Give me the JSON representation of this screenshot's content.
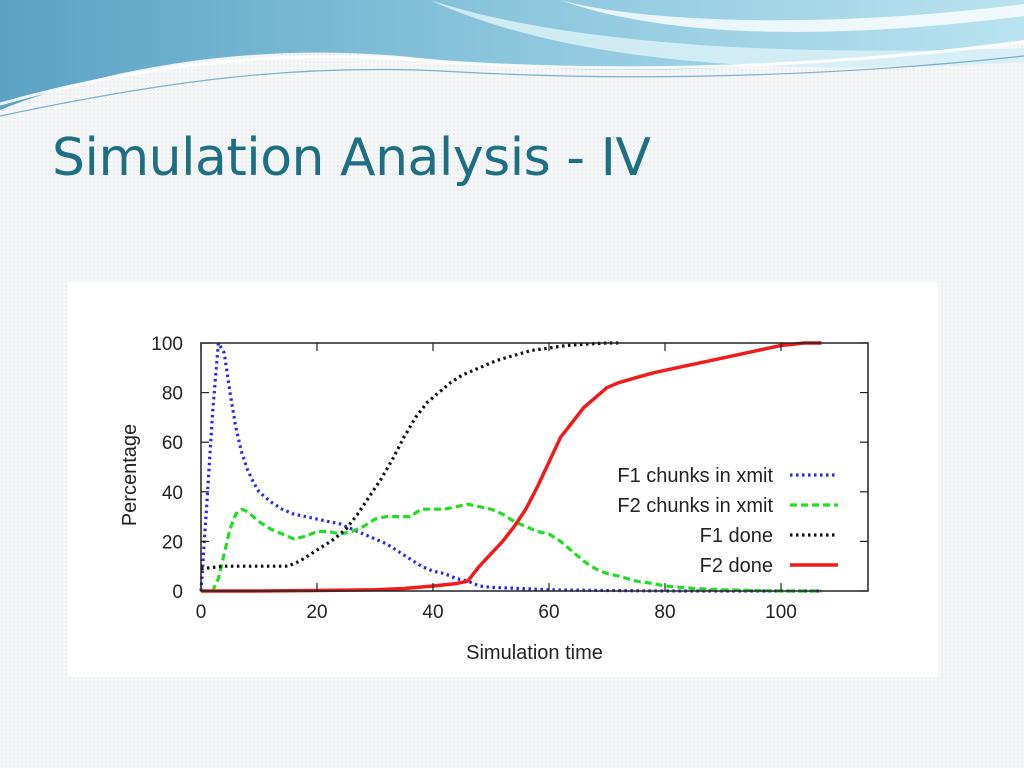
{
  "slide": {
    "title": "Simulation Analysis - IV"
  },
  "chart_data": {
    "type": "line",
    "title": "",
    "xlabel": "Simulation time",
    "ylabel": "Percentage",
    "xlim": [
      0,
      115
    ],
    "ylim": [
      0,
      100
    ],
    "xticks": [
      0,
      20,
      40,
      60,
      80,
      100
    ],
    "yticks": [
      0,
      20,
      40,
      60,
      80,
      100
    ],
    "grid": false,
    "legend_position": "right",
    "series": [
      {
        "name": "F1 chunks in xmit",
        "color": "#2a2ae0",
        "style": "dotted",
        "points": [
          [
            0,
            0
          ],
          [
            1,
            35
          ],
          [
            2,
            72
          ],
          [
            3,
            100
          ],
          [
            4,
            96
          ],
          [
            5,
            80
          ],
          [
            6,
            66
          ],
          [
            7,
            56
          ],
          [
            8,
            49
          ],
          [
            9,
            44
          ],
          [
            10,
            40
          ],
          [
            12,
            36
          ],
          [
            14,
            33
          ],
          [
            16,
            31
          ],
          [
            18,
            30
          ],
          [
            20,
            29
          ],
          [
            22,
            28
          ],
          [
            24,
            27
          ],
          [
            26,
            25
          ],
          [
            28,
            23
          ],
          [
            30,
            21
          ],
          [
            32,
            19
          ],
          [
            34,
            16
          ],
          [
            36,
            13
          ],
          [
            38,
            10
          ],
          [
            40,
            8
          ],
          [
            42,
            7
          ],
          [
            44,
            5
          ],
          [
            46,
            4
          ],
          [
            48,
            2
          ],
          [
            50,
            1.5
          ],
          [
            55,
            1
          ],
          [
            60,
            0.5
          ],
          [
            70,
            0.2
          ],
          [
            80,
            0
          ],
          [
            107,
            0
          ]
        ]
      },
      {
        "name": "F2 chunks in xmit",
        "color": "#22dd22",
        "style": "dashed",
        "points": [
          [
            0,
            0
          ],
          [
            2,
            0
          ],
          [
            3,
            5
          ],
          [
            4,
            15
          ],
          [
            5,
            25
          ],
          [
            6,
            31
          ],
          [
            7,
            33
          ],
          [
            8,
            32
          ],
          [
            10,
            28
          ],
          [
            12,
            25
          ],
          [
            14,
            23
          ],
          [
            16,
            21
          ],
          [
            18,
            22
          ],
          [
            20,
            24
          ],
          [
            22,
            24
          ],
          [
            24,
            23
          ],
          [
            26,
            24
          ],
          [
            28,
            26
          ],
          [
            30,
            29
          ],
          [
            32,
            30
          ],
          [
            34,
            30
          ],
          [
            36,
            30
          ],
          [
            38,
            33
          ],
          [
            40,
            33
          ],
          [
            42,
            33
          ],
          [
            44,
            34
          ],
          [
            46,
            35
          ],
          [
            48,
            34
          ],
          [
            50,
            33
          ],
          [
            52,
            31
          ],
          [
            54,
            28
          ],
          [
            56,
            26
          ],
          [
            58,
            24
          ],
          [
            60,
            23
          ],
          [
            62,
            20
          ],
          [
            64,
            16
          ],
          [
            66,
            12
          ],
          [
            68,
            9
          ],
          [
            70,
            7
          ],
          [
            72,
            6
          ],
          [
            75,
            4
          ],
          [
            78,
            3
          ],
          [
            80,
            2
          ],
          [
            85,
            1
          ],
          [
            90,
            0.5
          ],
          [
            100,
            0
          ],
          [
            107,
            0
          ]
        ]
      },
      {
        "name": "F1 done",
        "color": "#111111",
        "style": "dotted",
        "points": [
          [
            0,
            9
          ],
          [
            4,
            10
          ],
          [
            8,
            10
          ],
          [
            12,
            10
          ],
          [
            15,
            10
          ],
          [
            17,
            12
          ],
          [
            19,
            15
          ],
          [
            21,
            18
          ],
          [
            23,
            21
          ],
          [
            25,
            25
          ],
          [
            27,
            31
          ],
          [
            29,
            38
          ],
          [
            31,
            45
          ],
          [
            33,
            53
          ],
          [
            35,
            62
          ],
          [
            37,
            70
          ],
          [
            39,
            76
          ],
          [
            41,
            80
          ],
          [
            43,
            84
          ],
          [
            45,
            87
          ],
          [
            47,
            89
          ],
          [
            49,
            91
          ],
          [
            51,
            93
          ],
          [
            54,
            95
          ],
          [
            57,
            97
          ],
          [
            60,
            98
          ],
          [
            63,
            99
          ],
          [
            66,
            99.5
          ],
          [
            70,
            100
          ],
          [
            72,
            100
          ]
        ]
      },
      {
        "name": "F2 done",
        "color": "#ee1c1c",
        "style": "solid",
        "points": [
          [
            0,
            0
          ],
          [
            10,
            0
          ],
          [
            20,
            0.2
          ],
          [
            30,
            0.5
          ],
          [
            35,
            1
          ],
          [
            40,
            2
          ],
          [
            44,
            3
          ],
          [
            46,
            4
          ],
          [
            47,
            7
          ],
          [
            48,
            10
          ],
          [
            50,
            15
          ],
          [
            52,
            20
          ],
          [
            54,
            26
          ],
          [
            56,
            33
          ],
          [
            58,
            42
          ],
          [
            60,
            52
          ],
          [
            62,
            62
          ],
          [
            64,
            68
          ],
          [
            66,
            74
          ],
          [
            68,
            78
          ],
          [
            70,
            82
          ],
          [
            72,
            84
          ],
          [
            75,
            86
          ],
          [
            78,
            88
          ],
          [
            80,
            89
          ],
          [
            84,
            91
          ],
          [
            88,
            93
          ],
          [
            92,
            95
          ],
          [
            96,
            97
          ],
          [
            100,
            99
          ],
          [
            104,
            100
          ],
          [
            107,
            100
          ]
        ]
      }
    ]
  }
}
